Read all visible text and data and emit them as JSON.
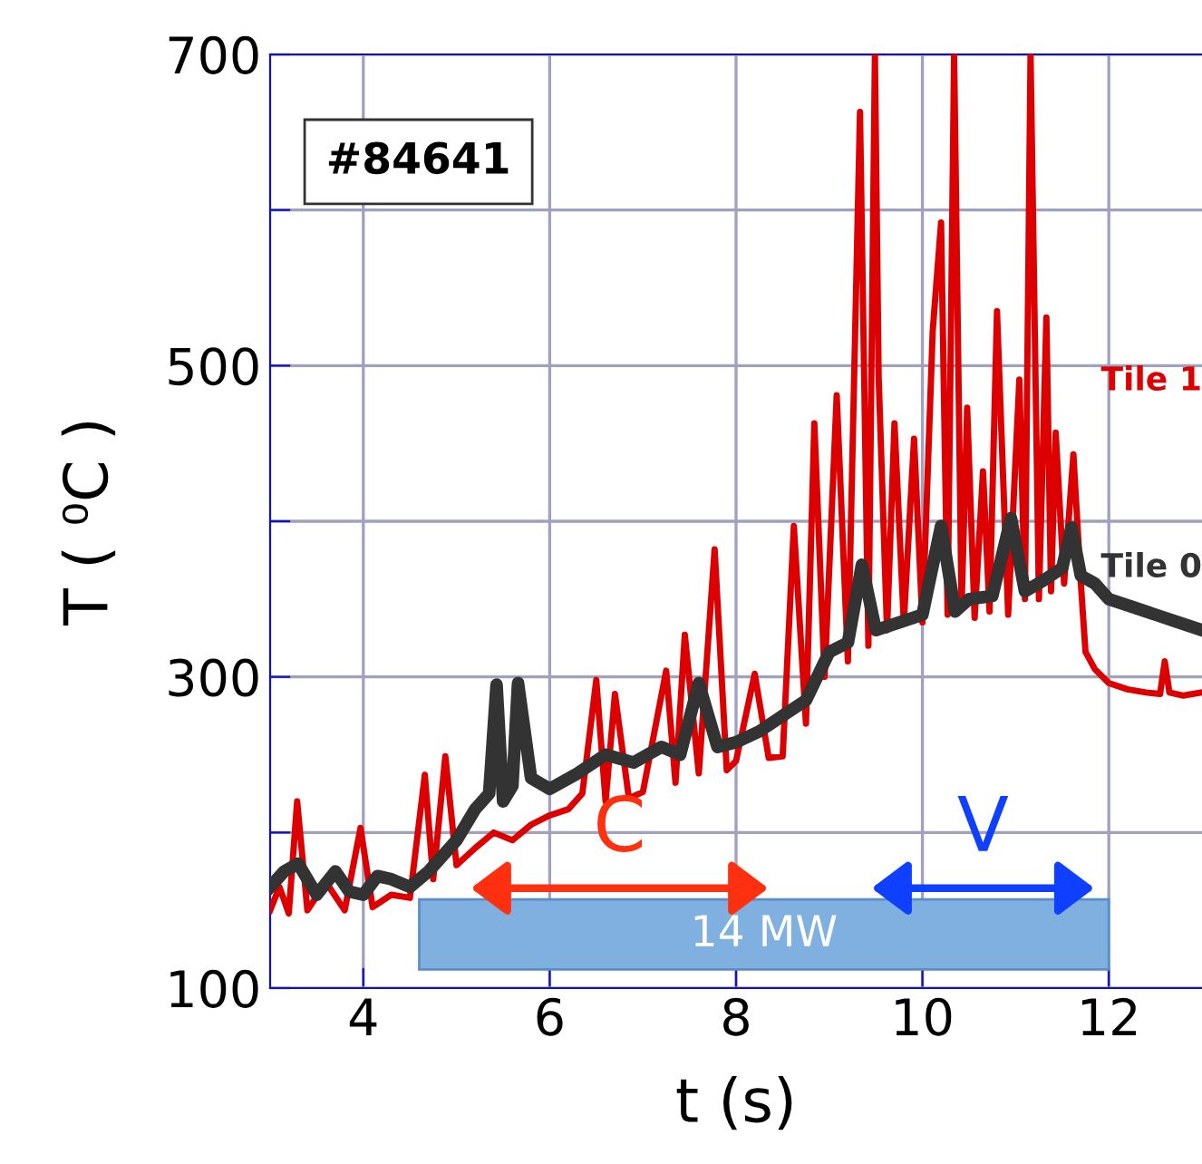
{
  "chart_data": {
    "type": "line",
    "xlabel": "t (s)",
    "ylabel": "T ( ⁰C )",
    "annotations": [
      "#84641",
      "C",
      "V"
    ],
    "xlim": [
      3,
      13
    ],
    "xticks": [
      4,
      6,
      8,
      10,
      12
    ],
    "ylim": [
      100,
      700
    ],
    "yticks": [
      100,
      {
        "value": 200,
        "label": null
      },
      300,
      {
        "value": 400,
        "label": null
      },
      500,
      {
        "value": 600,
        "label": null
      },
      700
    ],
    "grid": true,
    "legend": false,
    "marker": "none",
    "line_style": "solid",
    "bands": [
      {
        "axis": "x",
        "from": 4.6,
        "to": 12.0,
        "label": "14 MW",
        "color": "#7fb0e0"
      }
    ],
    "series": [
      {
        "name": "Tile 1",
        "color": "#dd0000",
        "x": [
          3.0,
          3.1,
          3.2,
          3.29,
          3.4,
          3.6,
          3.8,
          3.97,
          4.1,
          4.3,
          4.5,
          4.66,
          4.75,
          4.88,
          5.0,
          5.2,
          5.4,
          5.6,
          5.8,
          6.0,
          6.2,
          6.35,
          6.5,
          6.6,
          6.7,
          6.85,
          7.0,
          7.25,
          7.35,
          7.45,
          7.6,
          7.77,
          7.9,
          8.0,
          8.2,
          8.35,
          8.5,
          8.62,
          8.75,
          8.84,
          8.95,
          9.08,
          9.2,
          9.33,
          9.42,
          9.49,
          9.53,
          9.62,
          9.7,
          9.8,
          9.91,
          10.0,
          10.11,
          10.2,
          10.27,
          10.34,
          10.42,
          10.48,
          10.56,
          10.65,
          10.72,
          10.8,
          10.92,
          11.04,
          11.1,
          11.16,
          11.25,
          11.33,
          11.38,
          11.43,
          11.52,
          11.62,
          11.7,
          11.75,
          11.85,
          12.0,
          12.2,
          12.4,
          12.55,
          12.6,
          12.65,
          12.8,
          13.0
        ],
        "values": [
          150,
          165,
          148,
          220,
          150,
          168,
          150,
          203,
          152,
          160,
          158,
          237,
          170,
          249,
          179,
          190,
          200,
          195,
          205,
          211,
          215,
          225,
          298,
          220,
          289,
          222,
          226,
          304,
          232,
          327,
          238,
          382,
          240,
          246,
          302,
          248,
          249,
          397,
          270,
          463,
          300,
          481,
          310,
          663,
          320,
          700,
          493,
          330,
          463,
          335,
          453,
          335,
          522,
          592,
          340,
          700,
          345,
          473,
          338,
          432,
          342,
          535,
          340,
          491,
          350,
          700,
          350,
          531,
          355,
          457,
          360,
          443,
          360,
          316,
          305,
          296,
          292,
          290,
          289,
          310,
          290,
          288,
          290
        ]
      },
      {
        "name": "Tile 0",
        "color": "#333333",
        "x": [
          3.0,
          3.15,
          3.3,
          3.5,
          3.7,
          3.85,
          4.0,
          4.15,
          4.3,
          4.5,
          4.7,
          4.85,
          5.0,
          5.2,
          5.35,
          5.43,
          5.5,
          5.6,
          5.66,
          5.8,
          6.0,
          6.3,
          6.6,
          6.9,
          7.2,
          7.4,
          7.6,
          7.8,
          8.0,
          8.25,
          8.5,
          8.75,
          9.0,
          9.2,
          9.35,
          9.5,
          9.75,
          10.0,
          10.2,
          10.35,
          10.5,
          10.75,
          10.95,
          11.1,
          11.3,
          11.5,
          11.6,
          11.7,
          11.85,
          12.0,
          12.25,
          12.5,
          12.75,
          13.0
        ],
        "values": [
          165,
          175,
          180,
          160,
          175,
          162,
          160,
          172,
          170,
          165,
          175,
          185,
          195,
          215,
          225,
          295,
          220,
          230,
          296,
          235,
          228,
          238,
          250,
          245,
          255,
          250,
          296,
          255,
          258,
          265,
          275,
          285,
          316,
          322,
          372,
          330,
          335,
          340,
          397,
          342,
          350,
          352,
          402,
          355,
          362,
          370,
          396,
          365,
          360,
          350,
          345,
          340,
          335,
          330
        ]
      }
    ]
  }
}
